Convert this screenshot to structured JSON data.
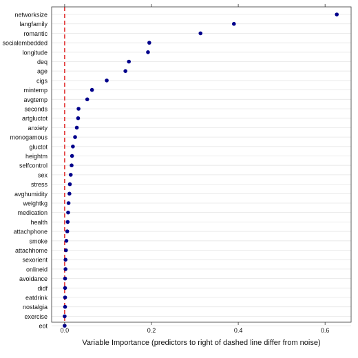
{
  "chart_data": {
    "type": "scatter",
    "title": "",
    "xlabel": "Variable Importance (predictors to right of dashed line differ from noise)",
    "ylabel": "",
    "xlim": [
      -0.03,
      0.66
    ],
    "x_ticks": [
      {
        "value": 0.0,
        "label": "0.0"
      },
      {
        "value": 0.2,
        "label": "0.2"
      },
      {
        "value": 0.4,
        "label": "0.4"
      },
      {
        "value": 0.6,
        "label": "0.6"
      }
    ],
    "reference_line": {
      "x": 0.0,
      "style": "dashed",
      "color": "#e03030"
    },
    "grid": "horizontal",
    "point_color": "#00008b",
    "categories": [
      "networksize",
      "langfamily",
      "romantic",
      "socialembedded",
      "longitude",
      "deq",
      "age",
      "cigs",
      "mintemp",
      "avgtemp",
      "seconds",
      "artgluctot",
      "anxiety",
      "monogamous",
      "gluctot",
      "heightm",
      "selfcontrol",
      "sex",
      "stress",
      "avghumidity",
      "weightkg",
      "medication",
      "health",
      "attachphone",
      "smoke",
      "attachhome",
      "sexorient",
      "onlineid",
      "avoidance",
      "didf",
      "eatdrink",
      "nostalgia",
      "exercise",
      "eot"
    ],
    "values": [
      0.627,
      0.39,
      0.313,
      0.195,
      0.192,
      0.148,
      0.14,
      0.097,
      0.063,
      0.052,
      0.032,
      0.031,
      0.028,
      0.024,
      0.019,
      0.017,
      0.016,
      0.014,
      0.012,
      0.011,
      0.009,
      0.008,
      0.007,
      0.006,
      0.004,
      0.003,
      0.002,
      0.002,
      0.001,
      0.001,
      0.001,
      0.001,
      0.0,
      0.0
    ]
  }
}
